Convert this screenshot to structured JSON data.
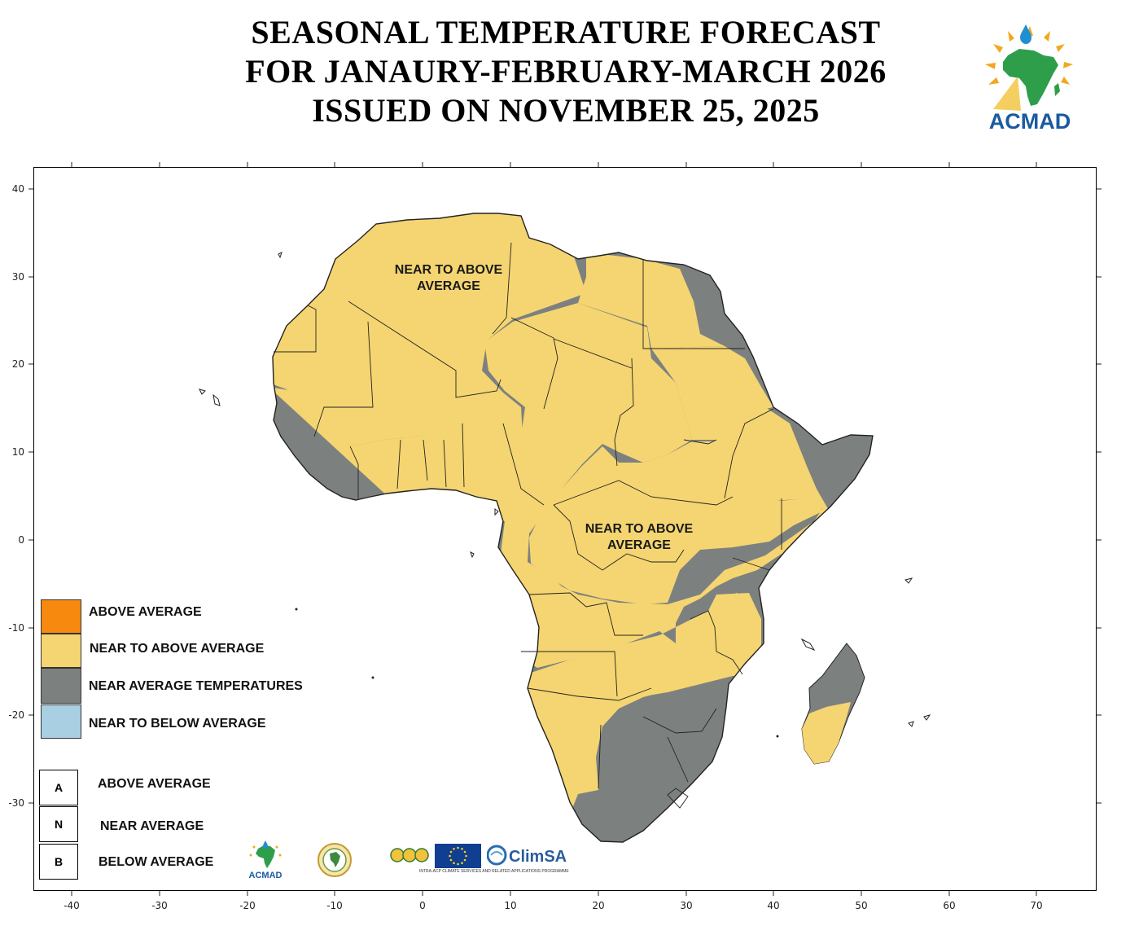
{
  "title": {
    "line1": "SEASONAL TEMPERATURE FORECAST",
    "line2": "FOR JANAURY-FEBRUARY-MARCH  2026",
    "line3": "ISSUED ON NOVEMBER 25, 2025"
  },
  "logo": {
    "text": "ACMAD",
    "icon": "acmad-logo-icon"
  },
  "colors": {
    "above": "#F7890F",
    "near_above": "#F5D571",
    "near": "#7C8180",
    "near_below": "#A9CFE3"
  },
  "axes": {
    "x_ticks": [
      "-40",
      "-30",
      "-20",
      "-10",
      "0",
      "10",
      "20",
      "30",
      "40",
      "50",
      "60",
      "70"
    ],
    "y_ticks": [
      "40",
      "30",
      "20",
      "10",
      "0",
      "-10",
      "-20",
      "-30"
    ]
  },
  "regions": {
    "north_label": "NEAR TO ABOVE AVERAGE",
    "central_label_line1": "NEAR TO  ABOVE",
    "central_label_line2": "AVERAGE"
  },
  "legend": {
    "categories": [
      {
        "label": "ABOVE AVERAGE",
        "color": "#F7890F"
      },
      {
        "label": "NEAR TO ABOVE AVERAGE",
        "color": "#F5D571"
      },
      {
        "label": "NEAR AVERAGE TEMPERATURES",
        "color": "#7C8180"
      },
      {
        "label": "NEAR TO BELOW  AVERAGE",
        "color": "#A9CFE3"
      }
    ],
    "letters": [
      {
        "letter": "A",
        "label": "ABOVE AVERAGE"
      },
      {
        "letter": "N",
        "label": "NEAR AVERAGE"
      },
      {
        "letter": "B",
        "label": "BELOW AVERAGE"
      }
    ]
  },
  "partners": {
    "acmad": "ACMAD",
    "climsa": "ClimSA",
    "climsa_tagline": "INTRA-ACP CLIMATE SERVICES AND RELATED APPLICATIONS PROGRAMME"
  }
}
